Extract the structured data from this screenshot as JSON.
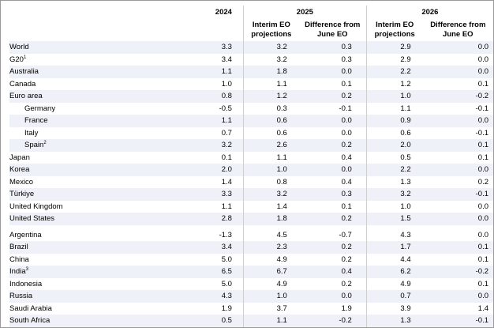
{
  "header": {
    "years": [
      "2024",
      "2025",
      "2026"
    ],
    "sub_cols": {
      "interim_line1": "Interim EO",
      "interim_line2": "projections",
      "diff_line1": "Difference from",
      "diff_line2": "June EO"
    }
  },
  "rows": [
    {
      "label": "World",
      "sup": "",
      "v2024": "3.3",
      "i2025": "3.2",
      "d2025": "0.3",
      "i2026": "2.9",
      "d2026": "0.0"
    },
    {
      "label": "G20",
      "sup": "1",
      "v2024": "3.4",
      "i2025": "3.2",
      "d2025": "0.3",
      "i2026": "2.9",
      "d2026": "0.0"
    },
    {
      "label": "Australia",
      "sup": "",
      "v2024": "1.1",
      "i2025": "1.8",
      "d2025": "0.0",
      "i2026": "2.2",
      "d2026": "0.0"
    },
    {
      "label": "Canada",
      "sup": "",
      "v2024": "1.0",
      "i2025": "1.1",
      "d2025": "0.1",
      "i2026": "1.2",
      "d2026": "0.1"
    },
    {
      "label": "Euro area",
      "sup": "",
      "v2024": "0.8",
      "i2025": "1.2",
      "d2025": "0.2",
      "i2026": "1.0",
      "d2026": "-0.2"
    },
    {
      "label": "Germany",
      "sup": "",
      "v2024": "-0.5",
      "i2025": "0.3",
      "d2025": "-0.1",
      "i2026": "1.1",
      "d2026": "-0.1"
    },
    {
      "label": "France",
      "sup": "",
      "v2024": "1.1",
      "i2025": "0.6",
      "d2025": "0.0",
      "i2026": "0.9",
      "d2026": "0.0"
    },
    {
      "label": "Italy",
      "sup": "",
      "v2024": "0.7",
      "i2025": "0.6",
      "d2025": "0.0",
      "i2026": "0.6",
      "d2026": "-0.1"
    },
    {
      "label": "Spain",
      "sup": "2",
      "v2024": "3.2",
      "i2025": "2.6",
      "d2025": "0.2",
      "i2026": "2.0",
      "d2026": "0.1"
    },
    {
      "label": "Japan",
      "sup": "",
      "v2024": "0.1",
      "i2025": "1.1",
      "d2025": "0.4",
      "i2026": "0.5",
      "d2026": "0.1"
    },
    {
      "label": "Korea",
      "sup": "",
      "v2024": "2.0",
      "i2025": "1.0",
      "d2025": "0.0",
      "i2026": "2.2",
      "d2026": "0.0"
    },
    {
      "label": "Mexico",
      "sup": "",
      "v2024": "1.4",
      "i2025": "0.8",
      "d2025": "0.4",
      "i2026": "1.3",
      "d2026": "0.2"
    },
    {
      "label": "Türkiye",
      "sup": "",
      "v2024": "3.3",
      "i2025": "3.2",
      "d2025": "0.3",
      "i2026": "3.2",
      "d2026": "-0.1"
    },
    {
      "label": "United Kingdom",
      "sup": "",
      "v2024": "1.1",
      "i2025": "1.4",
      "d2025": "0.1",
      "i2026": "1.0",
      "d2026": "0.0"
    },
    {
      "label": "United States",
      "sup": "",
      "v2024": "2.8",
      "i2025": "1.8",
      "d2025": "0.2",
      "i2026": "1.5",
      "d2026": "0.0"
    },
    {
      "label": "Argentina",
      "sup": "",
      "v2024": "-1.3",
      "i2025": "4.5",
      "d2025": "-0.7",
      "i2026": "4.3",
      "d2026": "0.0"
    },
    {
      "label": "Brazil",
      "sup": "",
      "v2024": "3.4",
      "i2025": "2.3",
      "d2025": "0.2",
      "i2026": "1.7",
      "d2026": "0.1"
    },
    {
      "label": "China",
      "sup": "",
      "v2024": "5.0",
      "i2025": "4.9",
      "d2025": "0.2",
      "i2026": "4.4",
      "d2026": "0.1"
    },
    {
      "label": "India",
      "sup": "3",
      "v2024": "6.5",
      "i2025": "6.7",
      "d2025": "0.4",
      "i2026": "6.2",
      "d2026": "-0.2"
    },
    {
      "label": "Indonesia",
      "sup": "",
      "v2024": "5.0",
      "i2025": "4.9",
      "d2025": "0.2",
      "i2026": "4.9",
      "d2026": "0.1"
    },
    {
      "label": "Russia",
      "sup": "",
      "v2024": "4.3",
      "i2025": "1.0",
      "d2025": "0.0",
      "i2026": "0.7",
      "d2026": "0.0"
    },
    {
      "label": "Saudi Arabia",
      "sup": "",
      "v2024": "1.9",
      "i2025": "3.7",
      "d2025": "1.9",
      "i2026": "3.9",
      "d2026": "1.4"
    },
    {
      "label": "South Africa",
      "sup": "",
      "v2024": "0.5",
      "i2025": "1.1",
      "d2025": "-0.2",
      "i2026": "1.3",
      "d2026": "-0.1"
    }
  ]
}
